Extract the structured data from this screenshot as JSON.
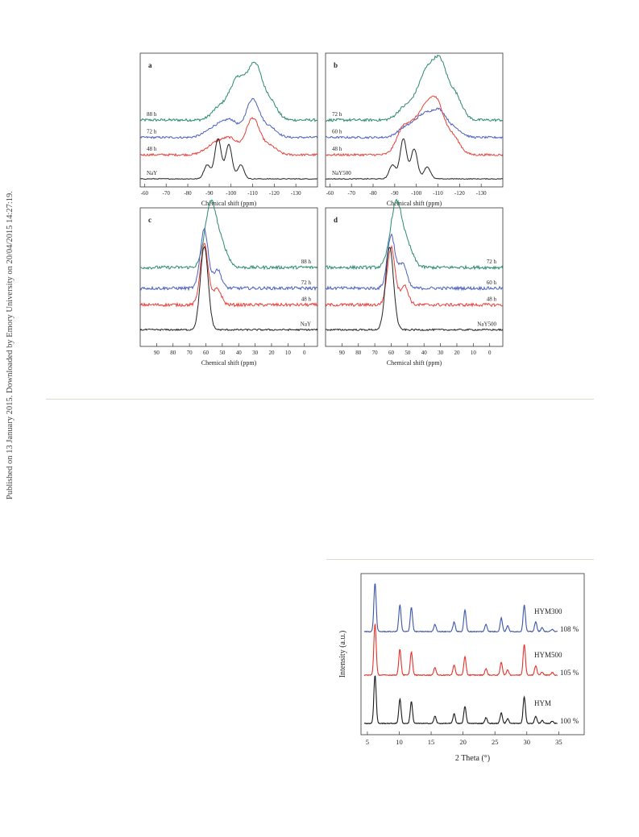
{
  "page": {
    "side_note": "Published on 13 January 2015. Downloaded by Emory University on 20/04/2015 14:27:19."
  },
  "figure_nmr": {
    "panels": [
      {
        "label": "a",
        "xlabel": "Chemical shift (ppm)",
        "ticks": [
          "-60",
          "-70",
          "-80",
          "-90",
          "-100",
          "-110",
          "-120",
          "-130"
        ],
        "series": [
          {
            "name": "88 h",
            "color": "#2a8a70"
          },
          {
            "name": "72 h",
            "color": "#4a5fbf"
          },
          {
            "name": "48 h",
            "color": "#e8403a"
          },
          {
            "name": "NaY",
            "color": "#222222"
          }
        ]
      },
      {
        "label": "b",
        "xlabel": "Chemical shift (ppm)",
        "ticks": [
          "-60",
          "-70",
          "-80",
          "-90",
          "-100",
          "-110",
          "-120",
          "-130"
        ],
        "series": [
          {
            "name": "72 h",
            "color": "#2a8a70"
          },
          {
            "name": "60 h",
            "color": "#4a5fbf"
          },
          {
            "name": "48 h",
            "color": "#e8403a"
          },
          {
            "name": "NaY500",
            "color": "#222222"
          }
        ]
      },
      {
        "label": "c",
        "xlabel": "Chemical shift (ppm)",
        "ticks": [
          "90",
          "80",
          "70",
          "60",
          "50",
          "40",
          "30",
          "20",
          "10",
          "0"
        ],
        "series": [
          {
            "name": "88 h",
            "color": "#2a8a70"
          },
          {
            "name": "72 h",
            "color": "#4a5fbf"
          },
          {
            "name": "48 h",
            "color": "#e8403a"
          },
          {
            "name": "NaY",
            "color": "#222222"
          }
        ]
      },
      {
        "label": "d",
        "xlabel": "Chemical shift (ppm)",
        "ticks": [
          "90",
          "80",
          "70",
          "60",
          "50",
          "40",
          "30",
          "20",
          "10",
          "0"
        ],
        "series": [
          {
            "name": "72 h",
            "color": "#2a8a70"
          },
          {
            "name": "60 h",
            "color": "#4a5fbf"
          },
          {
            "name": "48 h",
            "color": "#e8403a"
          },
          {
            "name": "NaY500",
            "color": "#222222"
          }
        ]
      }
    ]
  },
  "figure_xrd": {
    "xlabel": "2 Theta (°)",
    "ylabel": "Intensity (a.u.)",
    "xticks": [
      "5",
      "10",
      "15",
      "20",
      "25",
      "30",
      "35"
    ],
    "series": [
      {
        "name": "HYM300",
        "crystallinity": "108 %",
        "color": "#3d56a8"
      },
      {
        "name": "HYM500",
        "crystallinity": "105 %",
        "color": "#e8312a"
      },
      {
        "name": "HYM",
        "crystallinity": "100 %",
        "color": "#1a1a1a"
      }
    ]
  },
  "chart_data": [
    {
      "type": "line",
      "title": "a",
      "xlabel": "Chemical shift (ppm)",
      "ylabel": "",
      "xlim": [
        -58,
        -140
      ],
      "x_ticks": [
        -60,
        -70,
        -80,
        -90,
        -100,
        -110,
        -120,
        -130
      ],
      "y_scale": "arbitrary intensity (offset per series)",
      "grid": false,
      "series": [
        {
          "name": "NaY",
          "peaks": [
            {
              "x": -89,
              "y": 0.35
            },
            {
              "x": -94,
              "y": 1.0
            },
            {
              "x": -99,
              "y": 0.85
            },
            {
              "x": -104.5,
              "y": 0.35
            }
          ]
        },
        {
          "name": "48 h",
          "peaks": [
            {
              "x": -89,
              "y": 0.1
            },
            {
              "x": -94,
              "y": 0.25
            },
            {
              "x": -100,
              "y": 0.35
            },
            {
              "x": -110,
              "y": 0.85
            },
            {
              "x": -118,
              "y": 0.2
            }
          ]
        },
        {
          "name": "72 h",
          "peaks": [
            {
              "x": -89,
              "y": 0.1
            },
            {
              "x": -94,
              "y": 0.25
            },
            {
              "x": -100,
              "y": 0.4
            },
            {
              "x": -110,
              "y": 0.95
            },
            {
              "x": -118,
              "y": 0.25
            }
          ]
        },
        {
          "name": "88 h",
          "peaks": [
            {
              "x": -94,
              "y": 0.2
            },
            {
              "x": -100,
              "y": 0.3
            },
            {
              "x": -104,
              "y": 0.6
            },
            {
              "x": -111,
              "y": 1.0
            },
            {
              "x": -118,
              "y": 0.35
            }
          ]
        }
      ]
    },
    {
      "type": "line",
      "title": "b",
      "xlabel": "Chemical shift (ppm)",
      "ylabel": "",
      "xlim": [
        -58,
        -140
      ],
      "x_ticks": [
        -60,
        -70,
        -80,
        -90,
        -100,
        -110,
        -120,
        -130
      ],
      "y_scale": "arbitrary intensity (offset per series)",
      "grid": false,
      "series": [
        {
          "name": "NaY500",
          "peaks": [
            {
              "x": -89,
              "y": 0.35
            },
            {
              "x": -94,
              "y": 1.0
            },
            {
              "x": -99,
              "y": 0.75
            },
            {
              "x": -105,
              "y": 0.3
            }
          ]
        },
        {
          "name": "48 h",
          "peaks": [
            {
              "x": -94,
              "y": 0.6
            },
            {
              "x": -100,
              "y": 0.55
            },
            {
              "x": -105,
              "y": 0.8
            },
            {
              "x": -110,
              "y": 1.0
            },
            {
              "x": -117,
              "y": 0.4
            }
          ]
        },
        {
          "name": "60 h",
          "peaks": [
            {
              "x": -94,
              "y": 0.2
            },
            {
              "x": -100,
              "y": 0.3
            },
            {
              "x": -105,
              "y": 0.45
            },
            {
              "x": -111,
              "y": 0.6
            },
            {
              "x": -118,
              "y": 0.2
            }
          ]
        },
        {
          "name": "72 h",
          "peaks": [
            {
              "x": -94,
              "y": 0.2
            },
            {
              "x": -100,
              "y": 0.3
            },
            {
              "x": -105,
              "y": 0.75
            },
            {
              "x": -111,
              "y": 1.0
            },
            {
              "x": -118,
              "y": 0.45
            }
          ]
        }
      ]
    },
    {
      "type": "line",
      "title": "c",
      "xlabel": "Chemical shift (ppm)",
      "ylabel": "",
      "xlim": [
        100,
        -8
      ],
      "x_ticks": [
        90,
        80,
        70,
        60,
        50,
        40,
        30,
        20,
        10,
        0
      ],
      "y_scale": "arbitrary intensity (offset per series)",
      "grid": false,
      "series": [
        {
          "name": "NaY",
          "peaks": [
            {
              "x": 61,
              "y": 1.0
            }
          ]
        },
        {
          "name": "48 h",
          "peaks": [
            {
              "x": 61,
              "y": 0.95
            },
            {
              "x": 53,
              "y": 0.25
            }
          ]
        },
        {
          "name": "72 h",
          "peaks": [
            {
              "x": 61,
              "y": 0.95
            },
            {
              "x": 53,
              "y": 0.3
            }
          ]
        },
        {
          "name": "88 h",
          "peaks": [
            {
              "x": 57,
              "y": 1.0
            },
            {
              "x": 50,
              "y": 0.3
            }
          ]
        }
      ]
    },
    {
      "type": "line",
      "title": "d",
      "xlabel": "Chemical shift (ppm)",
      "ylabel": "",
      "xlim": [
        100,
        -8
      ],
      "x_ticks": [
        90,
        80,
        70,
        60,
        50,
        40,
        30,
        20,
        10,
        0
      ],
      "y_scale": "arbitrary intensity (offset per series)",
      "grid": false,
      "series": [
        {
          "name": "NaY500",
          "peaks": [
            {
              "x": 61,
              "y": 1.0
            }
          ]
        },
        {
          "name": "48 h",
          "peaks": [
            {
              "x": 60,
              "y": 0.9
            },
            {
              "x": 52,
              "y": 0.3
            }
          ]
        },
        {
          "name": "60 h",
          "peaks": [
            {
              "x": 60,
              "y": 0.85
            },
            {
              "x": 53,
              "y": 0.4
            }
          ]
        },
        {
          "name": "72 h",
          "peaks": [
            {
              "x": 57,
              "y": 1.0
            },
            {
              "x": 50,
              "y": 0.3
            }
          ]
        }
      ]
    },
    {
      "type": "line",
      "title": "",
      "xlabel": "2 Theta (°)",
      "ylabel": "Intensity (a.u.)",
      "xlim": [
        4,
        39
      ],
      "x_ticks": [
        5,
        10,
        15,
        20,
        25,
        30,
        35
      ],
      "y_scale": "arbitrary intensity (offset per series)",
      "grid": false,
      "peak_positions": [
        6.2,
        10.1,
        11.9,
        15.6,
        18.6,
        20.3,
        23.6,
        26.0,
        27.0,
        29.6,
        31.4,
        32.4,
        34.0
      ],
      "series": [
        {
          "name": "HYM300",
          "annotation": "108 %",
          "relative_peak_heights": [
            1.0,
            0.55,
            0.5,
            0.15,
            0.2,
            0.45,
            0.15,
            0.28,
            0.12,
            0.55,
            0.2,
            0.08,
            0.05
          ]
        },
        {
          "name": "HYM500",
          "annotation": "105 %",
          "relative_peak_heights": [
            1.0,
            0.5,
            0.45,
            0.15,
            0.2,
            0.35,
            0.12,
            0.25,
            0.1,
            0.6,
            0.18,
            0.06,
            0.05
          ]
        },
        {
          "name": "HYM",
          "annotation": "100 %",
          "relative_peak_heights": [
            1.0,
            0.5,
            0.45,
            0.15,
            0.2,
            0.35,
            0.12,
            0.22,
            0.1,
            0.55,
            0.15,
            0.06,
            0.05
          ]
        }
      ]
    }
  ]
}
